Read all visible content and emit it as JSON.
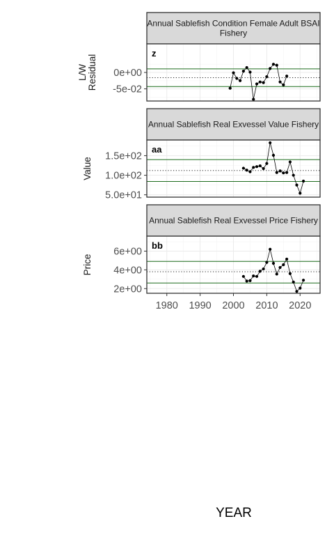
{
  "x_axis_title": "YEAR",
  "colors": {
    "mean_line": "#000000",
    "sd_line": "#1b6b1b",
    "grid": "#ebebeb",
    "strip_fill": "#d9d9d9",
    "panel_border": "#333333"
  },
  "chart_data": [
    {
      "type": "line",
      "title": "Annual Sablefish Condition Female Adult BSAI Fishery",
      "title_lines": [
        "Annual Sablefish Condition Female Adult BSAI",
        "Fishery"
      ],
      "tag": "z",
      "ylabel_lines": [
        "L/W",
        "Residual"
      ],
      "ylim": [
        -0.087,
        0.087
      ],
      "yticks": [
        -0.05,
        0.0
      ],
      "ytick_labels": [
        "-5e-02",
        "0e+00"
      ],
      "xlim": [
        1974,
        2026
      ],
      "xticks": [
        1980,
        1990,
        2000,
        2010,
        2020
      ],
      "xtick_labels": [
        "1980",
        "1990",
        "2000",
        "2010",
        "2020"
      ],
      "mean": -0.016,
      "sd_upper": 0.011,
      "sd_lower": -0.043,
      "x": [
        1999,
        2000,
        2001,
        2002,
        2003,
        2004,
        2005,
        2006,
        2007,
        2008,
        2009,
        2010,
        2011,
        2012,
        2013,
        2014,
        2015,
        2016
      ],
      "values": [
        -0.048,
        -0.001,
        -0.018,
        -0.025,
        0.004,
        0.015,
        0.001,
        -0.082,
        -0.035,
        -0.029,
        -0.031,
        -0.013,
        0.012,
        0.025,
        0.022,
        -0.029,
        -0.038,
        -0.011
      ]
    },
    {
      "type": "line",
      "title": "Annual Sablefish Real Exvessel Value Fishery",
      "title_lines": [
        "Annual Sablefish Real Exvessel Value Fishery"
      ],
      "tag": "aa",
      "ylabel_lines": [
        "Value"
      ],
      "ylim": [
        44,
        190
      ],
      "yticks": [
        50,
        100,
        150
      ],
      "ytick_labels": [
        "5.0e+01",
        "1.0e+02",
        "1.5e+02"
      ],
      "xlim": [
        1974,
        2026
      ],
      "xticks": [
        1980,
        1990,
        2000,
        2010,
        2020
      ],
      "xtick_labels": [
        "1980",
        "1990",
        "2000",
        "2010",
        "2020"
      ],
      "mean": 112,
      "sd_upper": 140,
      "sd_lower": 84,
      "x": [
        2003,
        2004,
        2005,
        2006,
        2007,
        2008,
        2009,
        2010,
        2011,
        2012,
        2013,
        2014,
        2015,
        2016,
        2017,
        2018,
        2019,
        2020,
        2021
      ],
      "values": [
        118,
        113,
        109,
        120,
        122,
        124,
        117,
        130,
        183,
        151,
        107,
        111,
        106,
        107,
        134,
        100,
        75,
        54,
        85
      ]
    },
    {
      "type": "line",
      "title": "Annual Sablefish Real Exvessel Price Fishery",
      "title_lines": [
        "Annual Sablefish Real Exvessel Price Fishery"
      ],
      "tag": "bb",
      "ylabel_lines": [
        "Price"
      ],
      "ylim": [
        1.5,
        7.6
      ],
      "yticks": [
        2,
        4,
        6
      ],
      "ytick_labels": [
        "2e+00",
        "4e+00",
        "6e+00"
      ],
      "xlim": [
        1974,
        2026
      ],
      "xticks": [
        1980,
        1990,
        2000,
        2010,
        2020
      ],
      "xtick_labels": [
        "1980",
        "1990",
        "2000",
        "2010",
        "2020"
      ],
      "mean": 3.8,
      "sd_upper": 4.9,
      "sd_lower": 2.6,
      "x": [
        2003,
        2004,
        2005,
        2006,
        2007,
        2008,
        2009,
        2010,
        2011,
        2012,
        2013,
        2014,
        2015,
        2016,
        2017,
        2018,
        2019,
        2020,
        2021
      ],
      "values": [
        3.3,
        2.8,
        2.85,
        3.35,
        3.3,
        3.85,
        4.1,
        4.8,
        6.2,
        4.7,
        3.55,
        4.25,
        4.55,
        5.15,
        3.6,
        2.7,
        1.7,
        2.05,
        2.9
      ]
    }
  ]
}
